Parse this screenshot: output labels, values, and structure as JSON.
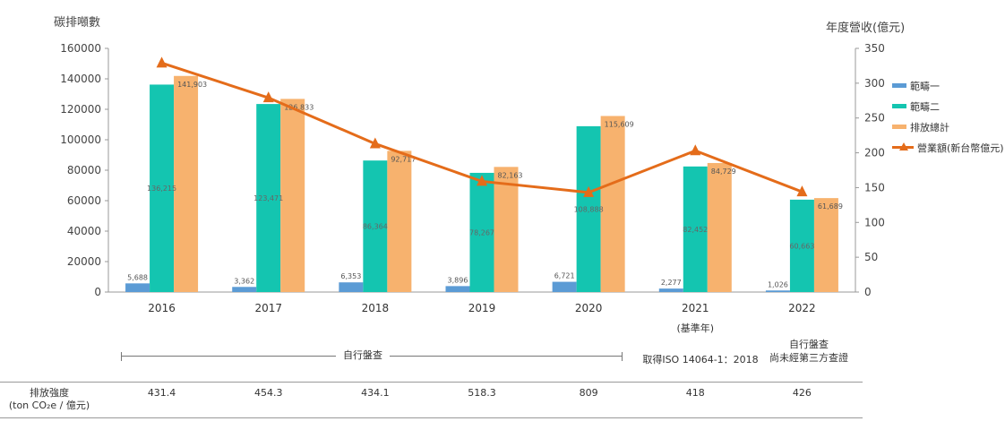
{
  "left_axis_title": "碳排噸數",
  "right_axis_title": "年度營收(億元)",
  "legend": {
    "scope1": "範疇一",
    "scope2": "範疇二",
    "total": "排放總計",
    "revenue": "營業額(新台幣億元)"
  },
  "chart_data": {
    "type": "bar",
    "categories": [
      "2016",
      "2017",
      "2018",
      "2019",
      "2020",
      "2021",
      "2022"
    ],
    "category_sublabels": [
      "",
      "",
      "",
      "",
      "",
      "(基準年)",
      ""
    ],
    "series": [
      {
        "name": "範疇一",
        "values": [
          5688,
          3362,
          6353,
          3896,
          6721,
          2277,
          1026
        ],
        "labels": [
          "5,688",
          "3,362",
          "6,353",
          "3,896",
          "6,721",
          "2,277",
          "1,026"
        ],
        "color": "#5b9bd5"
      },
      {
        "name": "範疇二",
        "values": [
          136215,
          123471,
          86364,
          78267,
          108888,
          82452,
          60663
        ],
        "labels": [
          "136,215",
          "123,471",
          "86,364",
          "78,267",
          "108,888",
          "82,452",
          "60,663"
        ],
        "color": "#14c5b0"
      },
      {
        "name": "排放總計",
        "values": [
          141903,
          126833,
          92717,
          82163,
          115609,
          84729,
          61689
        ],
        "labels": [
          "141,903",
          "126,833",
          "92,717",
          "82,163",
          "115,609",
          "84,729",
          "61,689"
        ],
        "color": "#f7b26e"
      }
    ],
    "line_series": {
      "name": "營業額(新台幣億元)",
      "values": [
        329,
        279,
        213,
        159,
        143,
        203,
        144
      ],
      "color": "#e46c1a"
    },
    "y_left": {
      "min": 0,
      "max": 160000,
      "ticks": [
        "0",
        "20000",
        "40000",
        "60000",
        "80000",
        "100000",
        "120000",
        "140000",
        "160000"
      ]
    },
    "y_right": {
      "min": 0,
      "max": 350,
      "ticks": [
        "0",
        "50",
        "100",
        "150",
        "200",
        "250",
        "300",
        "350"
      ]
    },
    "grid": false,
    "legend_position": "right"
  },
  "annotations": {
    "bracket_label": "自行盤查",
    "iso_note": "取得ISO 14064-1：2018",
    "note_2022_line1": "自行盤查",
    "note_2022_line2": "尚未經第三方查證"
  },
  "intensity": {
    "label_line1": "排放強度",
    "label_line2": "(ton CO₂e / 億元)",
    "values": [
      "431.4",
      "454.3",
      "434.1",
      "518.3",
      "809",
      "418",
      "426"
    ]
  }
}
